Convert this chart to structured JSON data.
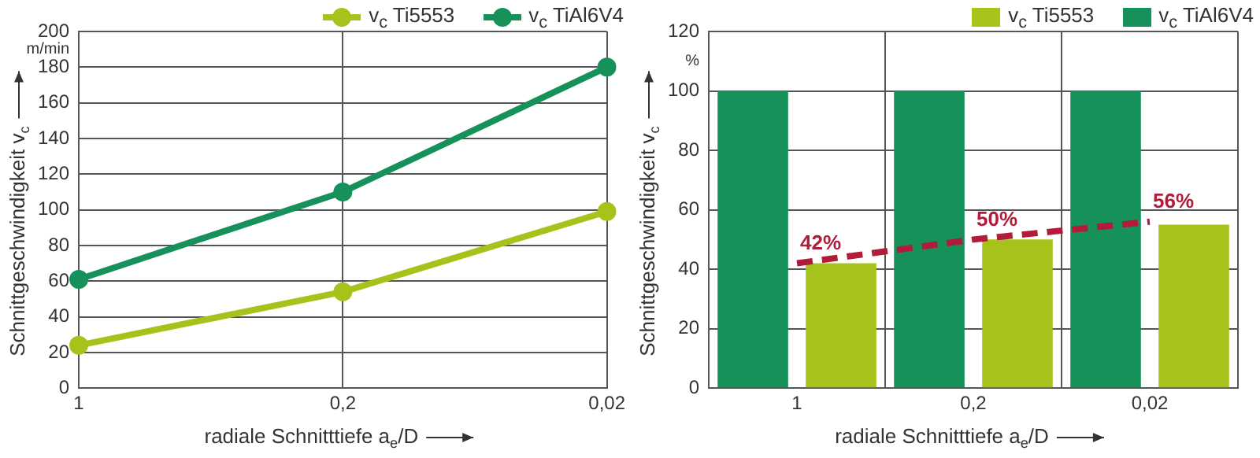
{
  "chart_data": [
    {
      "type": "line",
      "categories": [
        "1",
        "0,2",
        "0,02"
      ],
      "xlabel": "radiale Schnitttiefe a$_{e}$/D",
      "ylabel": "Schnittgeschwindigkeit v$_{c}$",
      "annotations": [
        "m/min"
      ],
      "ylim": [
        0,
        200
      ],
      "yticks": [
        0,
        20,
        40,
        60,
        80,
        100,
        120,
        140,
        160,
        180,
        200
      ],
      "grid": true,
      "legend": "top right",
      "marker": "circle",
      "series": [
        {
          "name": "v$_{c}$ Ti5553",
          "color": "#a5c31a",
          "values": [
            24,
            54,
            99
          ]
        },
        {
          "name": "v$_{c}$ TiAl6V4",
          "color": "#17915a",
          "values": [
            61,
            110,
            180
          ]
        }
      ]
    },
    {
      "type": "bar",
      "categories": [
        "1",
        "0,2",
        "0,02"
      ],
      "xlabel": "radiale Schnitttiefe a$_{e}$/D",
      "ylabel": "Schnittgeschwindigkeit v$_{c}$",
      "annotations": [
        "%"
      ],
      "ylim": [
        0,
        120
      ],
      "yticks": [
        0,
        20,
        40,
        60,
        80,
        100,
        120
      ],
      "grid": true,
      "legend": "top right",
      "series": [
        {
          "name": "v$_{c}$ TiAl6V4",
          "color": "#17915a",
          "values": [
            100,
            100,
            100
          ]
        },
        {
          "name": "v$_{c}$ Ti5553",
          "color": "#a5c31a",
          "values": [
            42,
            50,
            55
          ]
        },
        {
          "type": "line",
          "color": "#b01c3a",
          "line_style": "dashed",
          "marker": "none",
          "values": [
            42,
            50,
            56
          ],
          "value_labels": [
            "42%",
            "50%",
            "56%"
          ]
        }
      ]
    }
  ]
}
